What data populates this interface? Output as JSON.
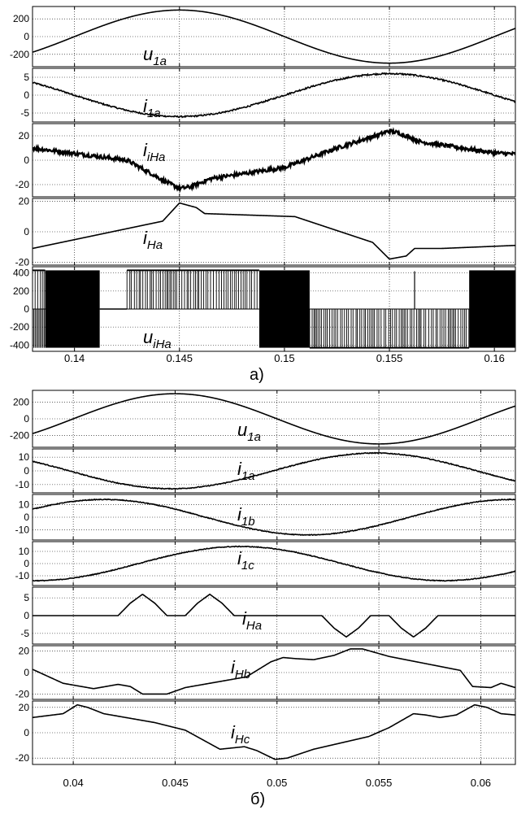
{
  "figure": {
    "caption_a": "а)",
    "caption_b": "б)"
  },
  "chart_data": [
    {
      "type": "line",
      "panel_group": "a",
      "xticks": [
        0.14,
        0.145,
        0.15,
        0.155,
        0.16
      ],
      "xtick_labels": [
        "0.14",
        "0.145",
        "0.15",
        "0.155",
        "0.16"
      ],
      "xlim": [
        0.138,
        0.161
      ],
      "grid": true,
      "panels": [
        {
          "label": {
            "main": "u",
            "sub": "1a"
          },
          "ylim": [
            -340,
            340
          ],
          "yticks": [
            200,
            0,
            -200
          ],
          "ytick_labels": [
            "200",
            "0",
            "-200"
          ],
          "series": {
            "kind": "sine",
            "amplitude": 300,
            "peak_at": 0.145,
            "period": 0.02
          }
        },
        {
          "label": {
            "main": "i",
            "sub": "1a"
          },
          "ylim": [
            -7.5,
            7.5
          ],
          "yticks": [
            5,
            0,
            -5
          ],
          "ytick_labels": [
            "5",
            "0",
            "-5"
          ],
          "series": {
            "kind": "sine",
            "amplitude": 6,
            "peak_at": 0.155,
            "period": 0.02,
            "noise": 0.2
          }
        },
        {
          "label": {
            "main": "i",
            "sub": "iHa"
          },
          "ylim": [
            -30,
            30
          ],
          "yticks": [
            20,
            0,
            -20
          ],
          "ytick_labels": [
            "20",
            "0",
            "-20"
          ],
          "series": {
            "kind": "points",
            "noise": 1.6,
            "x": [
              0.138,
              0.1425,
              0.1445,
              0.145,
              0.1455,
              0.1465,
              0.15,
              0.1525,
              0.1545,
              0.155,
              0.1555,
              0.1565,
              0.16,
              0.161
            ],
            "y": [
              10,
              0,
              -19,
              -23,
              -22,
              -15,
              -6,
              10,
              21,
              24,
              22,
              15,
              6,
              5
            ]
          }
        },
        {
          "label": {
            "main": "i",
            "sub": "Ha"
          },
          "ylim": [
            -22,
            22
          ],
          "yticks": [
            20,
            0,
            -20
          ],
          "ytick_labels": [
            "20",
            "0",
            "-20"
          ],
          "series": {
            "kind": "points",
            "x": [
              0.138,
              0.1442,
              0.145,
              0.1458,
              0.1462,
              0.1505,
              0.1542,
              0.155,
              0.1558,
              0.1562,
              0.1575,
              0.161
            ],
            "y": [
              -11,
              7,
              19,
              16,
              12,
              10,
              -7,
              -18,
              -16,
              -11,
              -11,
              -9
            ]
          }
        },
        {
          "label": {
            "main": "u",
            "sub": "iHa"
          },
          "ylim": [
            -470,
            470
          ],
          "yticks": [
            400,
            200,
            0,
            -200,
            -400
          ],
          "ytick_labels": [
            "400",
            "200",
            "0",
            "-200",
            "-400"
          ],
          "series": {
            "kind": "pwm",
            "level": 430,
            "blocks": [
              {
                "x0": 0.138,
                "x1": 0.1386,
                "mode": "bi"
              },
              {
                "x0": 0.1386,
                "x1": 0.1412,
                "mode": "solid"
              },
              {
                "x0": 0.1412,
                "x1": 0.1425,
                "mode": "zero"
              },
              {
                "x0": 0.1425,
                "x1": 0.1488,
                "mode": "pos"
              },
              {
                "x0": 0.1488,
                "x1": 0.1512,
                "mode": "solid"
              },
              {
                "x0": 0.1512,
                "x1": 0.1588,
                "mode": "neg"
              },
              {
                "x0": 0.1588,
                "x1": 0.161,
                "mode": "solid"
              }
            ]
          }
        }
      ]
    },
    {
      "type": "line",
      "panel_group": "b",
      "xticks": [
        0.04,
        0.045,
        0.05,
        0.055,
        0.06
      ],
      "xtick_labels": [
        "0.04",
        "0.045",
        "0.05",
        "0.055",
        "0.06"
      ],
      "xlim": [
        0.038,
        0.0617
      ],
      "grid": true,
      "panels": [
        {
          "label": {
            "main": "u",
            "sub": "1a"
          },
          "ylim": [
            -340,
            340
          ],
          "yticks": [
            200,
            0,
            -200
          ],
          "ytick_labels": [
            "200",
            "0",
            "-200"
          ],
          "series": {
            "kind": "sine",
            "amplitude": 300,
            "peak_at": 0.045,
            "period": 0.02
          }
        },
        {
          "label": {
            "main": "i",
            "sub": "1a"
          },
          "ylim": [
            -16,
            16
          ],
          "yticks": [
            10,
            0,
            -10
          ],
          "ytick_labels": [
            "10",
            "0",
            "-10"
          ],
          "series": {
            "kind": "sine",
            "amplitude": 13,
            "peak_at": 0.0548,
            "period": 0.02,
            "noise": 0.3
          }
        },
        {
          "label": {
            "main": "i",
            "sub": "1b"
          },
          "ylim": [
            -18,
            18
          ],
          "yticks": [
            10,
            0,
            -10
          ],
          "ytick_labels": [
            "10",
            "0",
            "-10"
          ],
          "series": {
            "kind": "sine",
            "amplitude": 14,
            "peak_at": 0.0415,
            "period": 0.02,
            "noise": 0.3
          }
        },
        {
          "label": {
            "main": "i",
            "sub": "1c"
          },
          "ylim": [
            -18,
            18
          ],
          "yticks": [
            10,
            0,
            -10
          ],
          "ytick_labels": [
            "10",
            "0",
            "-10"
          ],
          "series": {
            "kind": "sine",
            "amplitude": 14,
            "peak_at": 0.0482,
            "period": 0.02,
            "noise": 0.3
          }
        },
        {
          "label": {
            "main": "i",
            "sub": "Ha"
          },
          "ylim": [
            -8,
            8
          ],
          "yticks": [
            5,
            0,
            -5
          ],
          "ytick_labels": [
            "5",
            "0",
            "-5"
          ],
          "series": {
            "kind": "points",
            "x": [
              0.038,
              0.0422,
              0.0428,
              0.0434,
              0.044,
              0.0446,
              0.0455,
              0.0461,
              0.0467,
              0.0473,
              0.0479,
              0.0522,
              0.0528,
              0.0534,
              0.054,
              0.0546,
              0.0555,
              0.0561,
              0.0567,
              0.0573,
              0.0579,
              0.0617
            ],
            "y": [
              0,
              0,
              3.5,
              6,
              3.5,
              0,
              0,
              3.5,
              6,
              3.5,
              0,
              0,
              -3.5,
              -6,
              -3.5,
              0,
              0,
              -3.5,
              -6,
              -3.5,
              0,
              0
            ]
          }
        },
        {
          "label": {
            "main": "i",
            "sub": "Hb"
          },
          "ylim": [
            -25,
            25
          ],
          "yticks": [
            20,
            0,
            -20
          ],
          "ytick_labels": [
            "20",
            "0",
            "-20"
          ],
          "series": {
            "kind": "points",
            "x": [
              0.038,
              0.0395,
              0.041,
              0.0422,
              0.0428,
              0.0434,
              0.0446,
              0.0455,
              0.0485,
              0.0497,
              0.0503,
              0.0509,
              0.0518,
              0.0528,
              0.0536,
              0.0542,
              0.0555,
              0.059,
              0.0596,
              0.0605,
              0.061,
              0.0617
            ],
            "y": [
              3,
              -10,
              -15,
              -11,
              -13,
              -20,
              -20,
              -14,
              -4,
              10,
              14,
              13,
              12,
              16,
              22,
              22,
              15,
              2,
              -13,
              -14,
              -10,
              -14
            ]
          }
        },
        {
          "label": {
            "main": "i",
            "sub": "Hc"
          },
          "ylim": [
            -25,
            25
          ],
          "yticks": [
            20,
            0,
            -20
          ],
          "ytick_labels": [
            "20",
            "0",
            "-20"
          ],
          "series": {
            "kind": "points",
            "x": [
              0.038,
              0.0395,
              0.0402,
              0.0407,
              0.0415,
              0.044,
              0.0455,
              0.0472,
              0.0478,
              0.0484,
              0.049,
              0.0499,
              0.0505,
              0.0518,
              0.0545,
              0.0555,
              0.0567,
              0.0573,
              0.058,
              0.0588,
              0.0597,
              0.0603,
              0.061,
              0.0617
            ],
            "y": [
              12,
              15,
              22,
              20,
              15,
              8,
              2,
              -13,
              -12,
              -11,
              -14,
              -21,
              -20,
              -13,
              -3,
              4,
              15,
              14,
              12,
              14,
              22,
              20,
              15,
              14
            ]
          }
        }
      ]
    }
  ]
}
